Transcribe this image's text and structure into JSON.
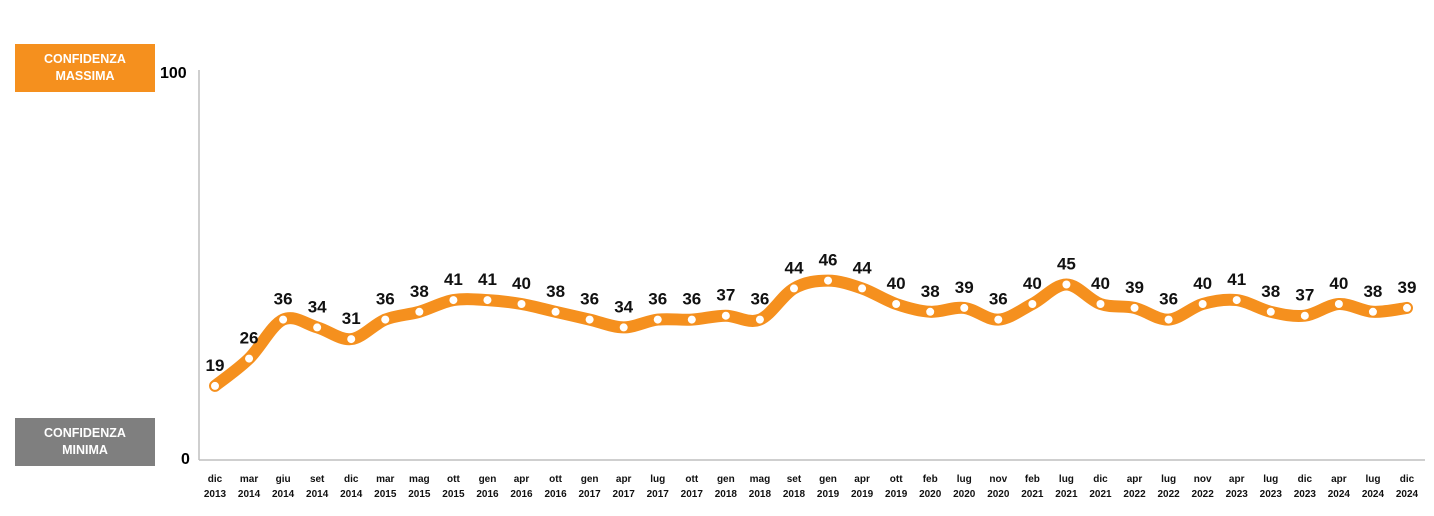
{
  "labels": {
    "max_line1": "CONFIDENZA",
    "max_line2": "MASSIMA",
    "min_line1": "CONFIDENZA",
    "min_line2": "MINIMA"
  },
  "colors": {
    "line": "#f5901e",
    "max_box": "#f5901e",
    "min_box": "#7f7f7f"
  },
  "chart_data": {
    "type": "line",
    "title": "",
    "xlabel": "",
    "ylabel": "",
    "ylim": [
      0,
      100
    ],
    "y_ticks": [
      "0",
      "100"
    ],
    "grid": false,
    "categories": [
      [
        "dic",
        "2013"
      ],
      [
        "mar",
        "2014"
      ],
      [
        "giu",
        "2014"
      ],
      [
        "set",
        "2014"
      ],
      [
        "dic",
        "2014"
      ],
      [
        "mar",
        "2015"
      ],
      [
        "mag",
        "2015"
      ],
      [
        "ott",
        "2015"
      ],
      [
        "gen",
        "2016"
      ],
      [
        "apr",
        "2016"
      ],
      [
        "ott",
        "2016"
      ],
      [
        "gen",
        "2017"
      ],
      [
        "apr",
        "2017"
      ],
      [
        "lug",
        "2017"
      ],
      [
        "ott",
        "2017"
      ],
      [
        "gen",
        "2018"
      ],
      [
        "mag",
        "2018"
      ],
      [
        "set",
        "2018"
      ],
      [
        "gen",
        "2019"
      ],
      [
        "apr",
        "2019"
      ],
      [
        "ott",
        "2019"
      ],
      [
        "feb",
        "2020"
      ],
      [
        "lug",
        "2020"
      ],
      [
        "nov",
        "2020"
      ],
      [
        "feb",
        "2021"
      ],
      [
        "lug",
        "2021"
      ],
      [
        "dic",
        "2021"
      ],
      [
        "apr",
        "2022"
      ],
      [
        "lug",
        "2022"
      ],
      [
        "nov",
        "2022"
      ],
      [
        "apr",
        "2023"
      ],
      [
        "lug",
        "2023"
      ],
      [
        "dic",
        "2023"
      ],
      [
        "apr",
        "2024"
      ],
      [
        "lug",
        "2024"
      ],
      [
        "dic",
        "2024"
      ]
    ],
    "values": [
      19,
      26,
      36,
      34,
      31,
      36,
      38,
      41,
      41,
      40,
      38,
      36,
      34,
      36,
      36,
      37,
      36,
      44,
      46,
      44,
      40,
      38,
      39,
      36,
      40,
      45,
      40,
      39,
      36,
      40,
      41,
      38,
      37,
      40,
      38,
      39
    ]
  }
}
